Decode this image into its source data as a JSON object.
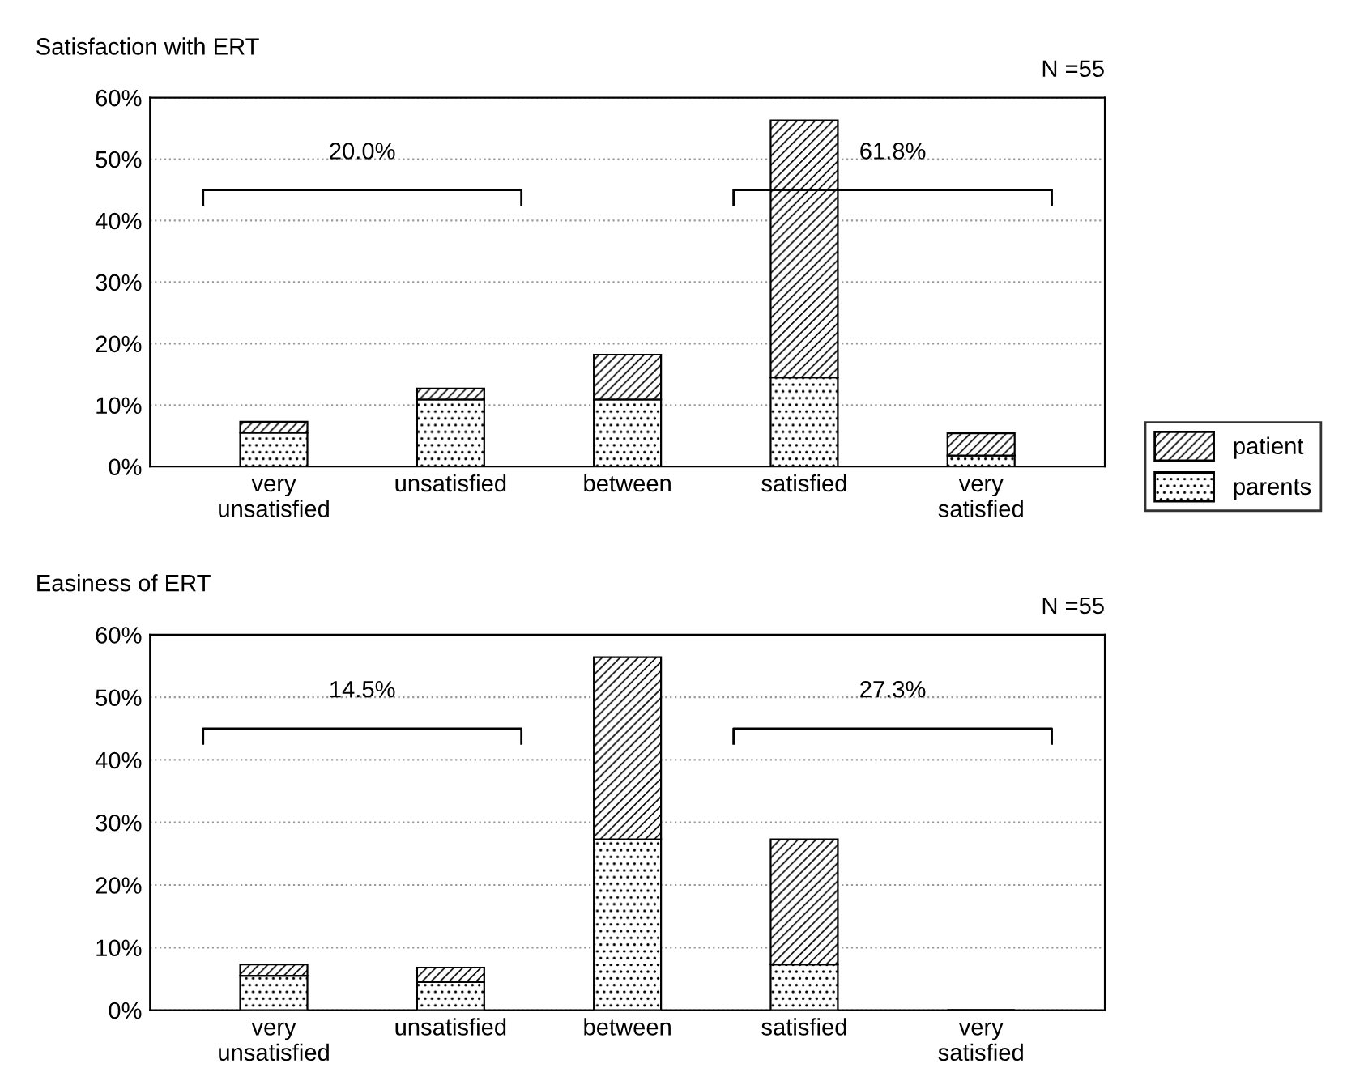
{
  "chart_data": [
    {
      "type": "bar",
      "title": "Satisfaction with ERT",
      "subtitle": "N =55",
      "categories": [
        "very\nunsatisfied",
        "unsatisfied",
        "between",
        "satisfied",
        "very\nsatisfied"
      ],
      "stacked": true,
      "legend": "right",
      "grid": "y",
      "series": [
        {
          "name": "parents",
          "color": "#000000",
          "values": [
            5.5,
            10.9,
            10.9,
            14.5,
            1.8
          ]
        },
        {
          "name": "patient",
          "color": "#000000",
          "values": [
            1.8,
            1.8,
            7.3,
            41.8,
            3.6
          ]
        }
      ],
      "ylim": [
        0,
        60
      ],
      "yticks": [
        {
          "value": 0,
          "label": "0%"
        },
        {
          "value": 10,
          "label": "10%"
        },
        {
          "value": 20,
          "label": "20%"
        },
        {
          "value": 30,
          "label": "30%"
        },
        {
          "value": 40,
          "label": "40%"
        },
        {
          "value": 50,
          "label": "50%"
        },
        {
          "value": 60,
          "label": "60%"
        }
      ],
      "annotations": [
        "20.0%",
        "61.8%"
      ]
    },
    {
      "type": "bar",
      "title": "Easiness of ERT",
      "subtitle": "N =55",
      "categories": [
        "very\nunsatisfied",
        "unsatisfied",
        "between",
        "satisfied",
        "very\nsatisfied"
      ],
      "stacked": true,
      "grid": "y",
      "series": [
        {
          "color": "#000000",
          "values": [
            5.5,
            4.5,
            27.3,
            7.3,
            0
          ]
        },
        {
          "color": "#000000",
          "values": [
            1.8,
            2.3,
            29.1,
            20.0,
            0
          ]
        }
      ],
      "ylim": [
        0,
        60
      ],
      "yticks": [
        {
          "value": 0,
          "label": "0%"
        },
        {
          "value": 10,
          "label": "10%"
        },
        {
          "value": 20,
          "label": "20%"
        },
        {
          "value": 30,
          "label": "30%"
        },
        {
          "value": 40,
          "label": "40%"
        },
        {
          "value": 50,
          "label": "50%"
        },
        {
          "value": 60,
          "label": "60%"
        }
      ],
      "annotations": [
        "14.5%",
        "27.3%"
      ]
    }
  ]
}
